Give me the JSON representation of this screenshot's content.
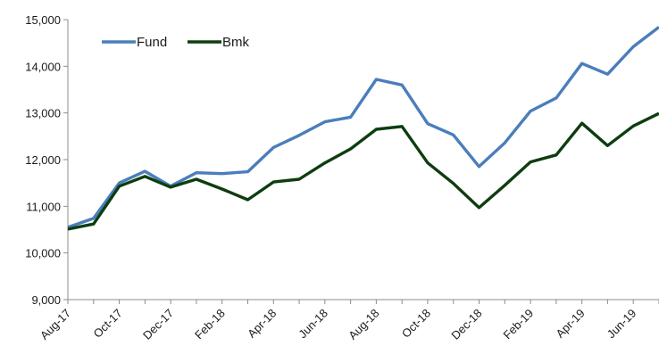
{
  "chart_data": {
    "type": "line",
    "x": [
      "Aug-17",
      "Sep-17",
      "Oct-17",
      "Nov-17",
      "Dec-17",
      "Jan-18",
      "Feb-18",
      "Mar-18",
      "Apr-18",
      "May-18",
      "Jun-18",
      "Jul-18",
      "Aug-18",
      "Sep-18",
      "Oct-18",
      "Nov-18",
      "Dec-18",
      "Jan-19",
      "Feb-19",
      "Mar-19",
      "Apr-19",
      "May-19",
      "Jun-19",
      "Jul-19"
    ],
    "x_tick_labels": [
      "Aug-17",
      "Oct-17",
      "Dec-17",
      "Feb-18",
      "Apr-18",
      "Jun-18",
      "Aug-18",
      "Oct-18",
      "Dec-18",
      "Feb-19",
      "Apr-19",
      "Jun-19"
    ],
    "ylim": [
      9000,
      15000
    ],
    "y_ticks": [
      9000,
      10000,
      11000,
      12000,
      13000,
      14000,
      15000
    ],
    "y_tick_labels": [
      "9,000",
      "10,000",
      "11,000",
      "12,000",
      "13,000",
      "14,000",
      "15,000"
    ],
    "legend_position": "top-left",
    "grid": false,
    "series": [
      {
        "name": "Fund",
        "color": "#4a7ebb",
        "values": [
          10550,
          10740,
          11500,
          11750,
          11430,
          11720,
          11700,
          11740,
          12260,
          12520,
          12810,
          12910,
          13720,
          13600,
          12770,
          12530,
          11850,
          12360,
          13040,
          13320,
          14060,
          13830,
          14420,
          14840
        ]
      },
      {
        "name": "Bmk",
        "color": "#0e3d10",
        "values": [
          10510,
          10620,
          11430,
          11640,
          11410,
          11580,
          11370,
          11140,
          11520,
          11580,
          11930,
          12230,
          12650,
          12710,
          11930,
          11490,
          10970,
          11450,
          11950,
          12100,
          12780,
          12300,
          12720,
          12990
        ]
      }
    ]
  }
}
